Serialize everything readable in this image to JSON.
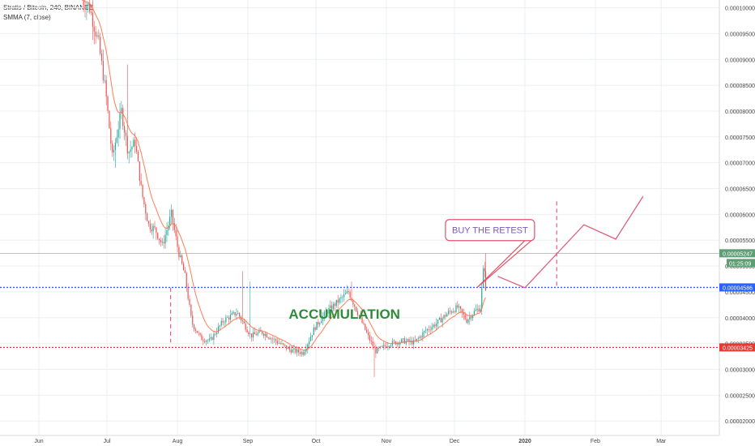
{
  "chart_data": {
    "type": "candlestick",
    "symbol_line": "Stratis / Bitcoin, 240, BINANCE",
    "indicator_line": "SMMA (7, close)",
    "x_tick_labels": [
      "Jun",
      "Jul",
      "Aug",
      "Sep",
      "Oct",
      "Nov",
      "Dec",
      "2020",
      "Feb",
      "Mar"
    ],
    "y_tick_labels": [
      "0.00010000",
      "0.00009500",
      "0.00009000",
      "0.00008500",
      "0.00008000",
      "0.00007500",
      "0.00007000",
      "0.00006500",
      "0.00006000",
      "0.00005500",
      "0.00005000",
      "0.00004500",
      "0.00004000",
      "0.00003500",
      "0.00003000",
      "0.00002500",
      "0.00002000"
    ],
    "ylim": [
      1.72e-05,
      0.0001015
    ],
    "price_path": [
      {
        "t": "Jun 20",
        "p": 0.000102
      },
      {
        "t": "Jun 24",
        "p": 0.0001
      },
      {
        "t": "Jun 28",
        "p": 9.3e-05
      },
      {
        "t": "Jul 1",
        "p": 8.4e-05
      },
      {
        "t": "Jul 4",
        "p": 7.1e-05
      },
      {
        "t": "Jul 8",
        "p": 8e-05
      },
      {
        "t": "Jul 11",
        "p": 7.2e-05
      },
      {
        "t": "Jul 14",
        "p": 7.4e-05
      },
      {
        "t": "Jul 17",
        "p": 6.4e-05
      },
      {
        "t": "Jul 20",
        "p": 5.8e-05
      },
      {
        "t": "Jul 23",
        "p": 5.7e-05
      },
      {
        "t": "Jul 26",
        "p": 5.4e-05
      },
      {
        "t": "Jul 30",
        "p": 6e-05
      },
      {
        "t": "Aug 2",
        "p": 5.3e-05
      },
      {
        "t": "Aug 5",
        "p": 4.8e-05
      },
      {
        "t": "Aug 8",
        "p": 3.9e-05
      },
      {
        "t": "Aug 12",
        "p": 3.6e-05
      },
      {
        "t": "Aug 16",
        "p": 3.55e-05
      },
      {
        "t": "Aug 22",
        "p": 3.95e-05
      },
      {
        "t": "Aug 28",
        "p": 4.1e-05
      },
      {
        "t": "Sep 3",
        "p": 3.65e-05
      },
      {
        "t": "Sep 8",
        "p": 3.72e-05
      },
      {
        "t": "Sep 14",
        "p": 3.55e-05
      },
      {
        "t": "Sep 20",
        "p": 3.38e-05
      },
      {
        "t": "Sep 26",
        "p": 3.32e-05
      },
      {
        "t": "Oct 1",
        "p": 3.8e-05
      },
      {
        "t": "Oct 6",
        "p": 4.1e-05
      },
      {
        "t": "Oct 11",
        "p": 4.3e-05
      },
      {
        "t": "Oct 16",
        "p": 4.5e-05
      },
      {
        "t": "Oct 21",
        "p": 4e-05
      },
      {
        "t": "Oct 25",
        "p": 3.6e-05
      },
      {
        "t": "Oct 28",
        "p": 3.35e-05
      },
      {
        "t": "Nov 3",
        "p": 3.5e-05
      },
      {
        "t": "Nov 9",
        "p": 3.55e-05
      },
      {
        "t": "Nov 14",
        "p": 3.52e-05
      },
      {
        "t": "Nov 19",
        "p": 3.75e-05
      },
      {
        "t": "Nov 24",
        "p": 3.9e-05
      },
      {
        "t": "Nov 29",
        "p": 4.1e-05
      },
      {
        "t": "Dec 3",
        "p": 4.2e-05
      },
      {
        "t": "Dec 7",
        "p": 3.95e-05
      },
      {
        "t": "Dec 10",
        "p": 4.1e-05
      },
      {
        "t": "Dec 13",
        "p": 4.2e-05
      },
      {
        "t": "Dec 15",
        "p": 5.247e-05
      }
    ],
    "high_wicks": [
      {
        "t": "Jul 10",
        "p": 8.9e-05
      },
      {
        "t": "Aug 30",
        "p": 4.9e-05
      },
      {
        "t": "Sep 2",
        "p": 4.7e-05
      },
      {
        "t": "Oct 17",
        "p": 4.7e-05
      }
    ],
    "low_wicks": [
      {
        "t": "Oct 27",
        "p": 2.85e-05
      },
      {
        "t": "Jul 5",
        "p": 6.9e-05
      }
    ],
    "horizontal_levels": [
      {
        "price": 4.586e-05,
        "label": "0.00004586",
        "color": "#2962ff",
        "style": "dotted"
      },
      {
        "price": 3.425e-05,
        "label": "0.00003425",
        "color": "#e53935",
        "style": "dotted"
      },
      {
        "price": 5.247e-05,
        "label": "0.00005247",
        "color": "#9e9e9e",
        "style": "solid"
      }
    ],
    "last_price_label": "0.00005247",
    "countdown_label": "01:25:09",
    "colors": {
      "up": "#26a69a",
      "down": "#ef5350",
      "smma": "#ff7043",
      "projection": "#e0607e",
      "accumulation_text": "#2e8b3a",
      "buy_text": "#7e57c2",
      "buy_border": "#e05569",
      "last_price_bg": "#5f9e74",
      "support_line": "#e53935",
      "resistance_line": "#2962ff"
    },
    "annotations": [
      {
        "type": "text",
        "text": "ACCUMULATION",
        "t": "Sep 19",
        "p": 3.98e-05
      },
      {
        "type": "callout",
        "text": "BUY THE RETEST",
        "anchor_t": "Dec 11",
        "anchor_p": 4.586e-05,
        "box_t": "Nov 27",
        "box_p": 5.9e-05
      }
    ],
    "dashed_verticals": [
      {
        "t": "Jul 29",
        "p_from": 4.58e-05,
        "p_to": 3.52e-05
      },
      {
        "t": "Jan 15",
        "p_from": 6.25e-05,
        "p_to": 4.58e-05
      }
    ],
    "projection_path": [
      {
        "t": "Dec 20",
        "p": 4.8e-05
      },
      {
        "t": "Jan 1",
        "p": 4.58e-05
      },
      {
        "t": "Jan 27",
        "p": 5.8e-05
      },
      {
        "t": "Feb 10",
        "p": 5.52e-05
      },
      {
        "t": "Feb 22",
        "p": 6.35e-05
      }
    ]
  }
}
